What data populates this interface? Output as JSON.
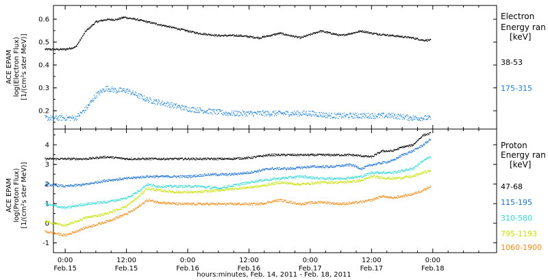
{
  "chart_data": [
    {
      "type": "scatter",
      "title": "",
      "ylabel_lines": [
        "ACE EPAM",
        "log(Electron Flux)",
        "[1/(cm²s ster MeV)]"
      ],
      "ylim": [
        0.12,
        0.66
      ],
      "yticks": [
        0.2,
        0.3,
        0.4,
        0.5,
        0.6
      ],
      "ytick_labels": [
        "0.2",
        "0.3",
        "0.4",
        "0.5",
        "0.6"
      ],
      "legend_title": [
        "Electron",
        "Energy ran",
        "[keV]"
      ],
      "grid": false,
      "series": [
        {
          "name": "38-53",
          "color": "#000000",
          "scatter": 0.004,
          "points": [
            [
              -4,
              0.47
            ],
            [
              0,
              0.47
            ],
            [
              2,
              0.48
            ],
            [
              4,
              0.55
            ],
            [
              6,
              0.59
            ],
            [
              8,
              0.6
            ],
            [
              10,
              0.6
            ],
            [
              11.5,
              0.61
            ],
            [
              14,
              0.6
            ],
            [
              18,
              0.58
            ],
            [
              22,
              0.56
            ],
            [
              26,
              0.54
            ],
            [
              30,
              0.53
            ],
            [
              34,
              0.53
            ],
            [
              38,
              0.52
            ],
            [
              42,
              0.54
            ],
            [
              46,
              0.52
            ],
            [
              50,
              0.55
            ],
            [
              54,
              0.53
            ],
            [
              58,
              0.55
            ],
            [
              60,
              0.54
            ],
            [
              64,
              0.53
            ],
            [
              68,
              0.52
            ],
            [
              70,
              0.51
            ],
            [
              71.5,
              0.51
            ]
          ]
        },
        {
          "name": "175-315",
          "color": "#1a7fd6",
          "scatter": 0.012,
          "points": [
            [
              -4,
              0.17
            ],
            [
              0,
              0.17
            ],
            [
              2,
              0.17
            ],
            [
              4,
              0.21
            ],
            [
              6,
              0.27
            ],
            [
              8,
              0.3
            ],
            [
              10,
              0.29
            ],
            [
              12,
              0.29
            ],
            [
              16,
              0.25
            ],
            [
              20,
              0.23
            ],
            [
              24,
              0.21
            ],
            [
              28,
              0.2
            ],
            [
              32,
              0.19
            ],
            [
              36,
              0.19
            ],
            [
              40,
              0.19
            ],
            [
              44,
              0.19
            ],
            [
              48,
              0.19
            ],
            [
              52,
              0.18
            ],
            [
              56,
              0.18
            ],
            [
              60,
              0.18
            ],
            [
              64,
              0.18
            ],
            [
              68,
              0.17
            ],
            [
              71.5,
              0.17
            ]
          ]
        }
      ]
    },
    {
      "type": "scatter",
      "title": "",
      "ylabel_lines": [
        "ACE EPAM",
        "log(Proton Flux)",
        "[1/(cm²s ster MeV)]"
      ],
      "ylim": [
        -1.5,
        4.8
      ],
      "yticks": [
        -1,
        0,
        1,
        2,
        3,
        4
      ],
      "ytick_labels": [
        "-1",
        "0",
        "1",
        "2",
        "3",
        "4"
      ],
      "legend_title": [
        "Proton",
        "Energy ran",
        "[keV]"
      ],
      "grid": false,
      "series": [
        {
          "name": "47-68",
          "color": "#000000",
          "scatter": 0.05,
          "points": [
            [
              -4,
              3.3
            ],
            [
              0,
              3.3
            ],
            [
              4,
              3.3
            ],
            [
              8,
              3.4
            ],
            [
              12,
              3.3
            ],
            [
              16,
              3.3
            ],
            [
              20,
              3.3
            ],
            [
              24,
              3.3
            ],
            [
              28,
              3.3
            ],
            [
              32,
              3.3
            ],
            [
              36,
              3.35
            ],
            [
              40,
              3.5
            ],
            [
              44,
              3.5
            ],
            [
              48,
              3.5
            ],
            [
              52,
              3.5
            ],
            [
              56,
              3.5
            ],
            [
              60,
              3.4
            ],
            [
              62,
              3.7
            ],
            [
              64,
              3.7
            ],
            [
              66,
              3.9
            ],
            [
              68,
              4.0
            ],
            [
              70,
              4.5
            ],
            [
              71.5,
              4.6
            ]
          ]
        },
        {
          "name": "115-195",
          "color": "#1a6fd0",
          "scatter": 0.06,
          "points": [
            [
              -4,
              2.0
            ],
            [
              0,
              1.9
            ],
            [
              4,
              2.0
            ],
            [
              8,
              2.2
            ],
            [
              12,
              2.3
            ],
            [
              16,
              2.4
            ],
            [
              20,
              2.4
            ],
            [
              24,
              2.4
            ],
            [
              28,
              2.5
            ],
            [
              32,
              2.5
            ],
            [
              36,
              2.6
            ],
            [
              40,
              2.8
            ],
            [
              44,
              2.8
            ],
            [
              48,
              2.9
            ],
            [
              52,
              2.9
            ],
            [
              56,
              3.0
            ],
            [
              58,
              2.8
            ],
            [
              60,
              3.0
            ],
            [
              62,
              3.1
            ],
            [
              64,
              3.2
            ],
            [
              66,
              3.5
            ],
            [
              68,
              3.7
            ],
            [
              70,
              4.0
            ],
            [
              71.5,
              4.3
            ]
          ]
        },
        {
          "name": "310-580",
          "color": "#2fd6d6",
          "scatter": 0.06,
          "points": [
            [
              -4,
              1.0
            ],
            [
              0,
              0.8
            ],
            [
              4,
              1.0
            ],
            [
              8,
              1.1
            ],
            [
              12,
              1.3
            ],
            [
              14,
              1.6
            ],
            [
              16,
              2.0
            ],
            [
              18,
              1.9
            ],
            [
              22,
              1.9
            ],
            [
              26,
              1.9
            ],
            [
              30,
              1.8
            ],
            [
              34,
              2.0
            ],
            [
              38,
              2.2
            ],
            [
              42,
              2.3
            ],
            [
              46,
              2.4
            ],
            [
              50,
              2.3
            ],
            [
              54,
              2.3
            ],
            [
              58,
              2.4
            ],
            [
              60,
              2.6
            ],
            [
              64,
              2.6
            ],
            [
              68,
              2.8
            ],
            [
              70,
              3.2
            ],
            [
              71.5,
              3.4
            ]
          ]
        },
        {
          "name": "795-1193",
          "color": "#c8e000",
          "scatter": 0.06,
          "points": [
            [
              -4,
              0.1
            ],
            [
              0,
              -0.1
            ],
            [
              4,
              0.3
            ],
            [
              8,
              0.5
            ],
            [
              12,
              0.9
            ],
            [
              14,
              1.3
            ],
            [
              16,
              1.8
            ],
            [
              18,
              1.7
            ],
            [
              22,
              1.6
            ],
            [
              26,
              1.6
            ],
            [
              30,
              1.7
            ],
            [
              34,
              1.8
            ],
            [
              38,
              1.9
            ],
            [
              42,
              2.1
            ],
            [
              46,
              2.0
            ],
            [
              50,
              2.1
            ],
            [
              54,
              2.1
            ],
            [
              58,
              2.2
            ],
            [
              60,
              2.4
            ],
            [
              64,
              2.3
            ],
            [
              68,
              2.4
            ],
            [
              70,
              2.6
            ],
            [
              71.5,
              2.7
            ]
          ]
        },
        {
          "name": "1060-1900",
          "color": "#f08a14",
          "scatter": 0.06,
          "points": [
            [
              -4,
              -0.4
            ],
            [
              0,
              -0.6
            ],
            [
              4,
              -0.2
            ],
            [
              8,
              0.1
            ],
            [
              12,
              0.5
            ],
            [
              14,
              0.8
            ],
            [
              16,
              1.2
            ],
            [
              18,
              1.1
            ],
            [
              22,
              1.0
            ],
            [
              26,
              1.0
            ],
            [
              30,
              1.0
            ],
            [
              34,
              1.0
            ],
            [
              38,
              1.0
            ],
            [
              42,
              1.2
            ],
            [
              46,
              1.0
            ],
            [
              50,
              1.1
            ],
            [
              54,
              1.0
            ],
            [
              58,
              1.1
            ],
            [
              60,
              1.2
            ],
            [
              62,
              1.4
            ],
            [
              64,
              1.3
            ],
            [
              68,
              1.5
            ],
            [
              70,
              1.7
            ],
            [
              71.5,
              1.9
            ]
          ]
        }
      ]
    }
  ],
  "x_axis": {
    "xlim": [
      -2.3,
      84.5
    ],
    "major_ticks": [
      0,
      12,
      24,
      36,
      48,
      60,
      72
    ],
    "minor_ticks": [
      3,
      6,
      9,
      15,
      18,
      21,
      27,
      30,
      33,
      39,
      42,
      45,
      51,
      54,
      57,
      63,
      66,
      69,
      75,
      78,
      81
    ],
    "time_labels": [
      "0:00",
      "12:00",
      "0:00",
      "12:00",
      "0:00",
      "12:00",
      "0:00"
    ],
    "date_labels": [
      "Feb.15",
      "Feb.15",
      "Feb.16",
      "Feb.16",
      "Feb.17",
      "Feb.17",
      "Feb.18"
    ],
    "xlabel": "hours:minutes, Feb. 14, 2011 - Feb. 18, 2011"
  }
}
